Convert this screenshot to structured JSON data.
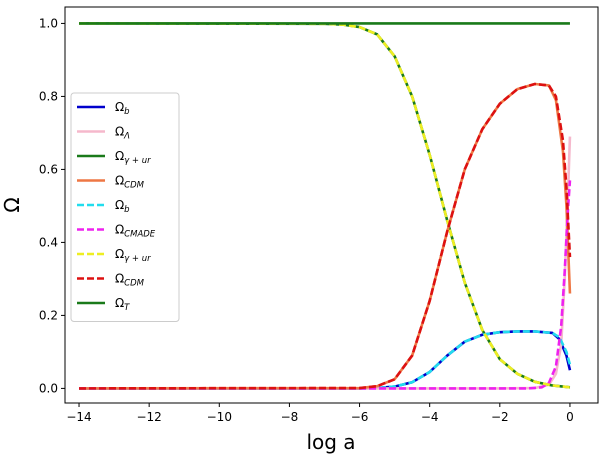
{
  "chart_data": {
    "type": "line",
    "title": "",
    "xlabel": "log a",
    "ylabel": "Ω",
    "xlim": [
      -14.4,
      0.8
    ],
    "ylim": [
      -0.04,
      1.045
    ],
    "x_ticks": [
      -14,
      -12,
      -10,
      -8,
      -6,
      -4,
      -2,
      0
    ],
    "x_tick_labels": [
      "−14",
      "−12",
      "−10",
      "−8",
      "−6",
      "−4",
      "−2",
      "0"
    ],
    "y_ticks": [
      0.0,
      0.2,
      0.4,
      0.6,
      0.8,
      1.0
    ],
    "y_tick_labels": [
      "0.0",
      "0.2",
      "0.4",
      "0.6",
      "0.8",
      "1.0"
    ],
    "legend_position": "center-left",
    "series": [
      {
        "name": "Ω_b",
        "label_main": "Ω",
        "label_sub": "b",
        "color": "#0000cc",
        "style": "solid",
        "x": [
          -14,
          -6,
          -5.5,
          -5,
          -4.5,
          -4,
          -3.5,
          -3,
          -2.5,
          -2,
          -1.5,
          -1,
          -0.5,
          -0.3,
          -0.1,
          0
        ],
        "y": [
          0,
          0,
          0.001,
          0.005,
          0.017,
          0.045,
          0.09,
          0.128,
          0.147,
          0.154,
          0.156,
          0.156,
          0.152,
          0.135,
          0.09,
          0.05
        ]
      },
      {
        "name": "Ω_Λ",
        "label_main": "Ω",
        "label_sub": "Λ",
        "color": "#f5b8cc",
        "style": "solid",
        "x": [
          -14,
          -2,
          -1,
          -0.6,
          -0.4,
          -0.25,
          -0.15,
          -0.05,
          0
        ],
        "y": [
          0,
          0,
          0.001,
          0.01,
          0.04,
          0.12,
          0.3,
          0.55,
          0.69
        ]
      },
      {
        "name": "Ω_γ+ur",
        "label_main": "Ω",
        "label_sub": "γ + ur",
        "color": "#1a7a1a",
        "style": "solid",
        "x": [
          -14,
          -7,
          -6.5,
          -6,
          -5.5,
          -5,
          -4.5,
          -4,
          -3.5,
          -3,
          -2.5,
          -2,
          -1.5,
          -1,
          -0.5,
          0
        ],
        "y": [
          1,
          0.999,
          0.997,
          0.99,
          0.97,
          0.91,
          0.8,
          0.64,
          0.46,
          0.29,
          0.16,
          0.08,
          0.04,
          0.018,
          0.008,
          0.003
        ]
      },
      {
        "name": "Ω_CDM",
        "label_main": "Ω",
        "label_sub": "CDM",
        "color": "#ee7744",
        "style": "solid",
        "x": [
          -14,
          -6,
          -5.5,
          -5,
          -4.5,
          -4,
          -3.5,
          -3,
          -2.5,
          -2,
          -1.5,
          -1,
          -0.6,
          -0.4,
          -0.2,
          -0.1,
          0
        ],
        "y": [
          0,
          0.001,
          0.006,
          0.025,
          0.09,
          0.24,
          0.43,
          0.6,
          0.71,
          0.78,
          0.82,
          0.834,
          0.83,
          0.79,
          0.65,
          0.5,
          0.26
        ]
      },
      {
        "name": "Ω_b",
        "label_main": "Ω",
        "label_sub": "b",
        "color": "#22ddee",
        "style": "dashed",
        "x": [
          -14,
          -6,
          -5.5,
          -5,
          -4.5,
          -4,
          -3.5,
          -3,
          -2.5,
          -2,
          -1.5,
          -1,
          -0.5,
          -0.3,
          -0.1,
          0
        ],
        "y": [
          0,
          0,
          0.001,
          0.005,
          0.017,
          0.045,
          0.09,
          0.128,
          0.147,
          0.154,
          0.156,
          0.156,
          0.152,
          0.14,
          0.1,
          0.065
        ]
      },
      {
        "name": "Ω_CMADE",
        "label_main": "Ω",
        "label_sub": "CMADE",
        "color": "#ee22ee",
        "style": "dashed",
        "x": [
          -14,
          -1.2,
          -0.8,
          -0.6,
          -0.4,
          -0.25,
          -0.15,
          -0.05,
          0
        ],
        "y": [
          0,
          0,
          0.003,
          0.015,
          0.06,
          0.17,
          0.32,
          0.5,
          0.57
        ]
      },
      {
        "name": "Ω_γ+ur",
        "label_main": "Ω",
        "label_sub": "γ + ur",
        "color": "#eeee22",
        "style": "dashed",
        "x": [
          -14,
          -7,
          -6.5,
          -6,
          -5.5,
          -5,
          -4.5,
          -4,
          -3.5,
          -3,
          -2.5,
          -2,
          -1.5,
          -1,
          -0.5,
          0
        ],
        "y": [
          1,
          0.999,
          0.997,
          0.99,
          0.97,
          0.91,
          0.8,
          0.64,
          0.46,
          0.29,
          0.16,
          0.08,
          0.04,
          0.018,
          0.008,
          0.003
        ]
      },
      {
        "name": "Ω_CDM",
        "label_main": "Ω",
        "label_sub": "CDM",
        "color": "#dd1111",
        "style": "dashed",
        "x": [
          -14,
          -6,
          -5.5,
          -5,
          -4.5,
          -4,
          -3.5,
          -3,
          -2.5,
          -2,
          -1.5,
          -1,
          -0.6,
          -0.4,
          -0.2,
          -0.1,
          0
        ],
        "y": [
          0,
          0.001,
          0.006,
          0.025,
          0.09,
          0.24,
          0.43,
          0.6,
          0.71,
          0.78,
          0.82,
          0.834,
          0.83,
          0.8,
          0.68,
          0.55,
          0.36
        ]
      },
      {
        "name": "Ω_T",
        "label_main": "Ω",
        "label_sub": "T",
        "color": "#1a7a1a",
        "style": "solid",
        "x": [
          -14,
          0
        ],
        "y": [
          1,
          1
        ]
      }
    ]
  }
}
